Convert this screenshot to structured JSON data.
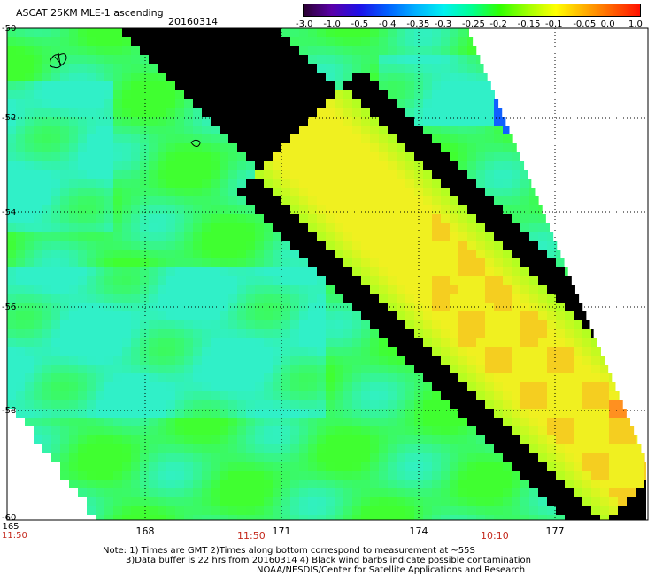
{
  "header": {
    "title": "ASCAT 25KM MLE-1 ascending",
    "date": "20160314"
  },
  "legend": {
    "labels": [
      "-3.0",
      "-1.0",
      "-0.5",
      "-0.4",
      "-0.35",
      "-0.3",
      "-0.25",
      "-0.2",
      "-0.15",
      "-0.1",
      "-0.05",
      "0.0",
      "1.0"
    ],
    "colors": [
      "#2a0030",
      "#5a00a8",
      "#1e10e8",
      "#0060ff",
      "#00b0ff",
      "#00f0f0",
      "#00ff90",
      "#30ff00",
      "#a0ff00",
      "#ffff00",
      "#ffb000",
      "#ff6000",
      "#ff1000"
    ]
  },
  "axes": {
    "x_ticks": [
      "168",
      "171",
      "174",
      "177"
    ],
    "x_first": "165",
    "y_ticks": [
      "-50",
      "-52",
      "-54",
      "-56",
      "-58",
      "-60"
    ]
  },
  "times": [
    "11:50",
    "11:50",
    "10:10"
  ],
  "notes": {
    "line1": "Note: 1) Times are GMT 2)Times along bottom correspond to measurement at ~55S",
    "line2": "3)Data buffer is 22 hrs from 20160314 4) Black wind barbs indicate possible contamination",
    "line3": "NOAA/NESDIS/Center for Satellite Applications and Research"
  },
  "colors": {
    "field_cyan": "#30f0c8",
    "field_green": "#40ff30",
    "field_yellowgreen": "#b0ff20",
    "field_yellow": "#f0f020",
    "field_orange": "#ff9020",
    "field_blue": "#1060ff",
    "time_red": "#c4281c"
  }
}
